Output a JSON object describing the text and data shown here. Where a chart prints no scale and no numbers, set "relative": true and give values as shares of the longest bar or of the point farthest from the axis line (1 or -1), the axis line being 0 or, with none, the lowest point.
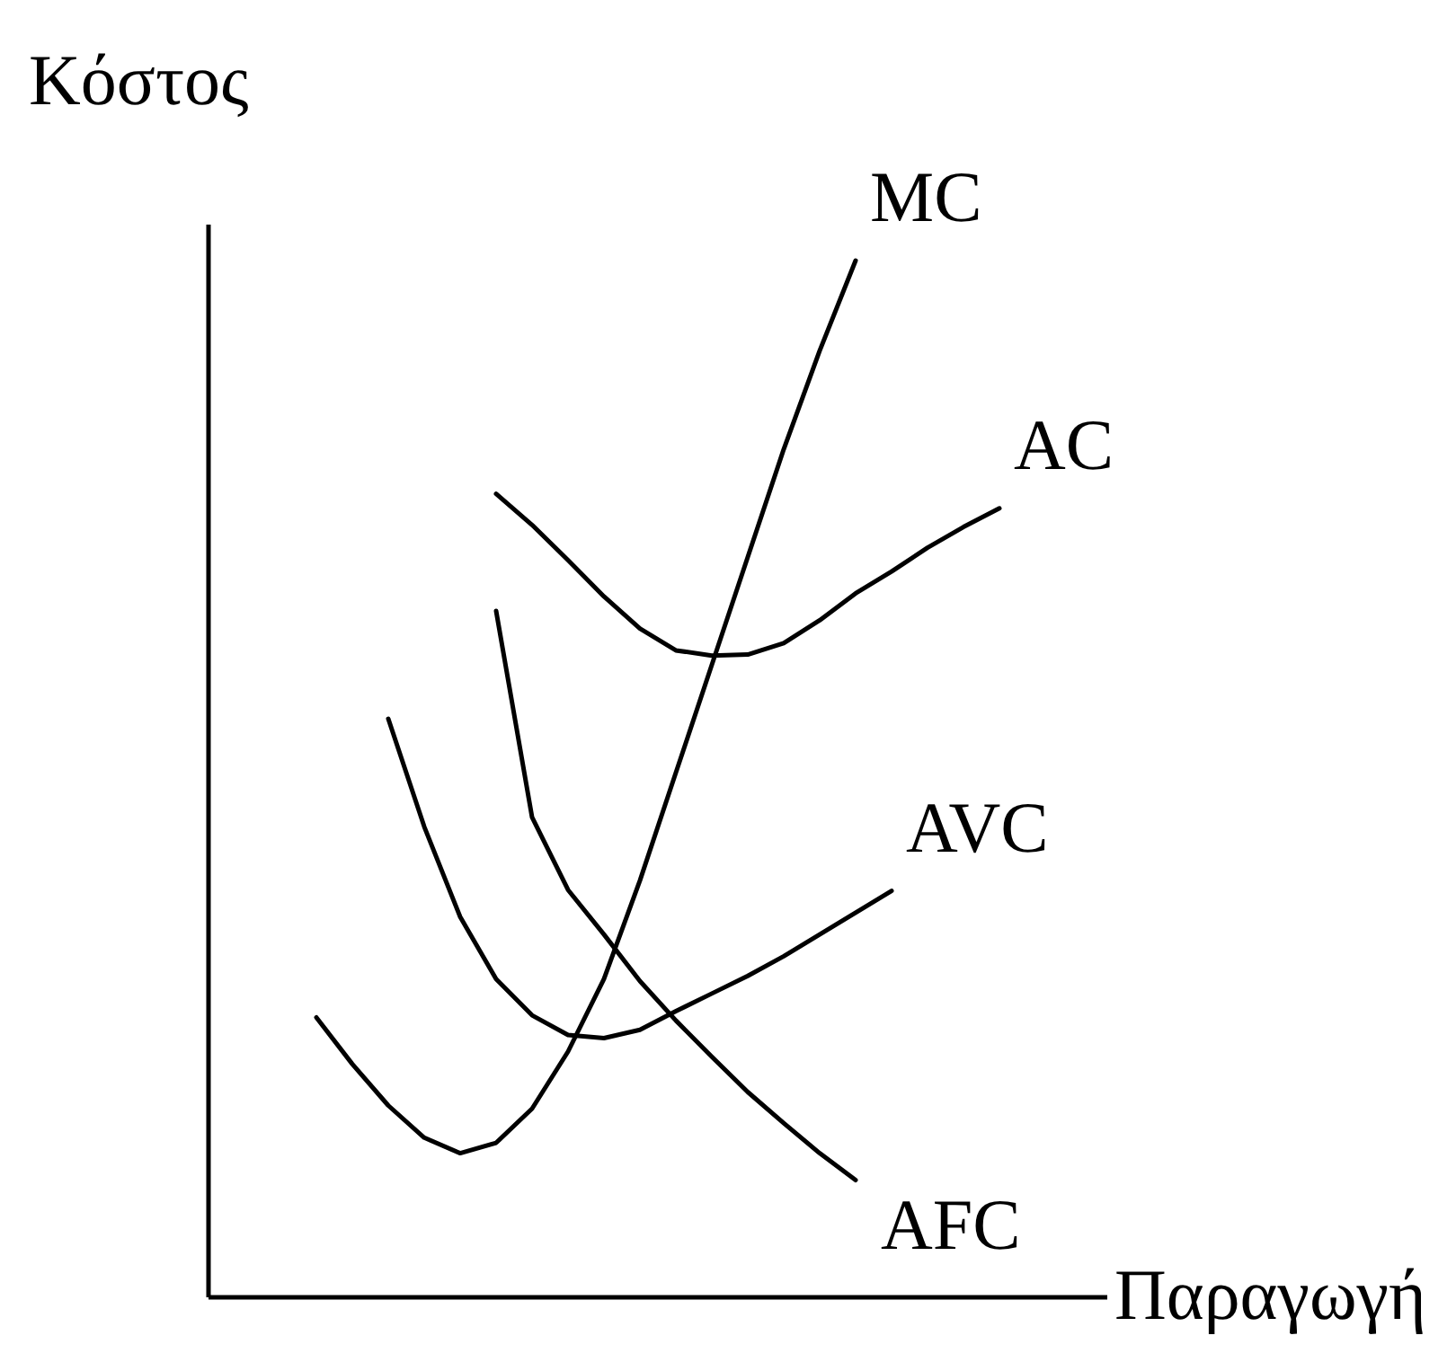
{
  "chart_data": {
    "type": "line",
    "relative": true,
    "xlabel": "Παραγωγή",
    "ylabel": "Κόστος",
    "categories": [
      null,
      null,
      null,
      null,
      null,
      null,
      null,
      null,
      null,
      null,
      null,
      null,
      null,
      null,
      null,
      null,
      null,
      null,
      null,
      null,
      null,
      null,
      null,
      null,
      null,
      null
    ],
    "tick_labels": false,
    "grid": false,
    "legend": false,
    "marker": "none",
    "line_style": "solid",
    "series": [
      {
        "name": "MC",
        "color": "#000000",
        "values": [
          null,
          null,
          null,
          0.27,
          0.225,
          0.185,
          0.154,
          0.139,
          0.149,
          0.182,
          0.237,
          0.307,
          0.402,
          0.506,
          0.61,
          0.714,
          0.818,
          0.913,
          1,
          null,
          null,
          null,
          null,
          null,
          null,
          null
        ]
      },
      {
        "name": "AC",
        "color": "#000000",
        "values": [
          null,
          null,
          null,
          null,
          null,
          null,
          null,
          null,
          0.775,
          0.745,
          0.711,
          0.676,
          0.645,
          0.624,
          0.619,
          0.62,
          0.631,
          0.653,
          0.679,
          0.7,
          0.723,
          0.743,
          0.761,
          null,
          null,
          null
        ]
      },
      {
        "name": "AVC",
        "color": "#000000",
        "values": [
          null,
          null,
          null,
          null,
          null,
          0.558,
          0.454,
          0.367,
          0.307,
          0.272,
          0.253,
          0.25,
          0.258,
          0.276,
          0.293,
          0.31,
          0.329,
          0.35,
          0.371,
          0.392,
          null,
          null,
          null,
          null,
          null,
          null
        ]
      },
      {
        "name": "AFC",
        "color": "#000000",
        "values": [
          null,
          null,
          null,
          null,
          null,
          null,
          null,
          null,
          0.662,
          0.463,
          0.393,
          0.35,
          0.305,
          0.267,
          0.232,
          0.198,
          0.168,
          0.139,
          0.113,
          null,
          null,
          null,
          null,
          null,
          null,
          null
        ]
      }
    ]
  }
}
